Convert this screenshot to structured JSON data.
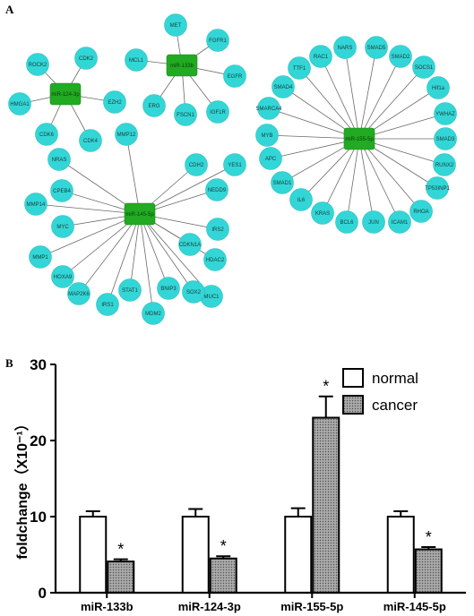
{
  "panel_a": {
    "letter": "A",
    "networks": [
      {
        "hub": "miR-133b",
        "colors": {
          "hub": "#22aa22",
          "target": "#33d6d6"
        },
        "targets": [
          "MET",
          "FGFR1",
          "EGFR",
          "IGF1R",
          "FSCN1",
          "ERG",
          "MCL1"
        ]
      },
      {
        "hub": "miR-124-3p",
        "colors": {
          "hub": "#22aa22",
          "target": "#33d6d6"
        },
        "targets": [
          "CDK2",
          "ROCK2",
          "HMGA1",
          "CDK6",
          "CDK4",
          "EZH2"
        ]
      },
      {
        "hub": "miR-145-5p",
        "colors": {
          "hub": "#22aa22",
          "target": "#33d6d6"
        },
        "targets": [
          "MMP12",
          "CDH2",
          "YES1",
          "NEDD9",
          "IRS2",
          "HDAC2",
          "CDKN1A",
          "MUC1",
          "SOX2",
          "BNIP3",
          "MDM2",
          "STAT1",
          "IRS1",
          "MAP2K6",
          "HOXA9",
          "MMP1",
          "MYC",
          "MMP14",
          "CPEB4",
          "NRAS"
        ]
      },
      {
        "hub": "miR-155-5p",
        "colors": {
          "hub": "#22aa22",
          "target": "#33d6d6"
        },
        "targets": [
          "NARS",
          "SMAD5",
          "SMAD2",
          "SOCS1",
          "Hif1a",
          "YWHAZ",
          "SMAD3",
          "RUNX2",
          "TP53INP1",
          "RHOA",
          "ICAM1",
          "JUN",
          "BCL6",
          "KRAS",
          "IL6",
          "SMAD1",
          "APC",
          "MYB",
          "SMARCA4",
          "SMAD4",
          "TTF1",
          "RAC1"
        ]
      }
    ]
  },
  "panel_b": {
    "letter": "B",
    "chart_data": {
      "type": "bar",
      "categories": [
        "miR-133b",
        "miR-124-3p",
        "miR-155-5p",
        "miR-145-5p"
      ],
      "series": [
        {
          "name": "normal",
          "values": [
            10.0,
            10.0,
            10.0,
            10.0
          ],
          "errors": [
            0.7,
            1.0,
            1.1,
            0.7
          ],
          "color": "#ffffff"
        },
        {
          "name": "cancer",
          "values": [
            4.1,
            4.5,
            23.0,
            5.7
          ],
          "errors": [
            0.3,
            0.3,
            2.8,
            0.3
          ],
          "color": "#8f8f8f"
        }
      ],
      "significance": [
        "*",
        "*",
        "*",
        "*"
      ],
      "ylabel": "foldchange（X10⁻¹）",
      "ylim": [
        0,
        30
      ],
      "yticks": [
        "0",
        "10",
        "20",
        "30"
      ],
      "legend": "top-right",
      "grid": false
    }
  }
}
